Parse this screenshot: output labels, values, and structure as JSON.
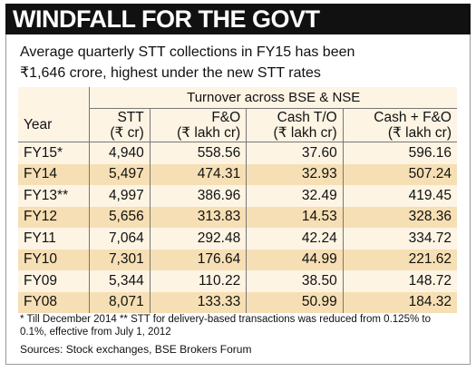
{
  "header": {
    "title": "WINDFALL FOR THE GOVT"
  },
  "intro": "Average quarterly STT collections in FY15 has been ₹1,646 crore, highest under the new STT rates",
  "table": {
    "group_header": "Turnover across BSE & NSE",
    "columns": [
      [
        "Year"
      ],
      [
        "STT",
        "(₹ cr)"
      ],
      [
        "F&O",
        "(₹ lakh cr)"
      ],
      [
        "Cash T/O",
        "(₹ lakh cr)"
      ],
      [
        "Cash + F&O",
        "(₹ lakh cr)"
      ]
    ],
    "rows": [
      [
        "FY15*",
        "4,940",
        "558.56",
        "37.60",
        "596.16"
      ],
      [
        "FY14",
        "5,497",
        "474.31",
        "32.93",
        "507.24"
      ],
      [
        "FY13**",
        "4,997",
        "386.96",
        "32.49",
        "419.45"
      ],
      [
        "FY12",
        "5,656",
        "313.83",
        "14.53",
        "328.36"
      ],
      [
        "FY11",
        "7,064",
        "292.48",
        "42.24",
        "334.72"
      ],
      [
        "FY10",
        "7,301",
        "176.64",
        "44.99",
        "221.62"
      ],
      [
        "FY09",
        "5,344",
        "110.22",
        "38.50",
        "148.72"
      ],
      [
        "FY08",
        "8,071",
        "133.33",
        "50.99",
        "184.32"
      ]
    ]
  },
  "footnote": "* Till December 2014 ** STT for delivery-based transactions was reduced from 0.125% to 0.1%, effective from July 1, 2012",
  "sources": "Sources: Stock exchanges, BSE Brokers Forum"
}
